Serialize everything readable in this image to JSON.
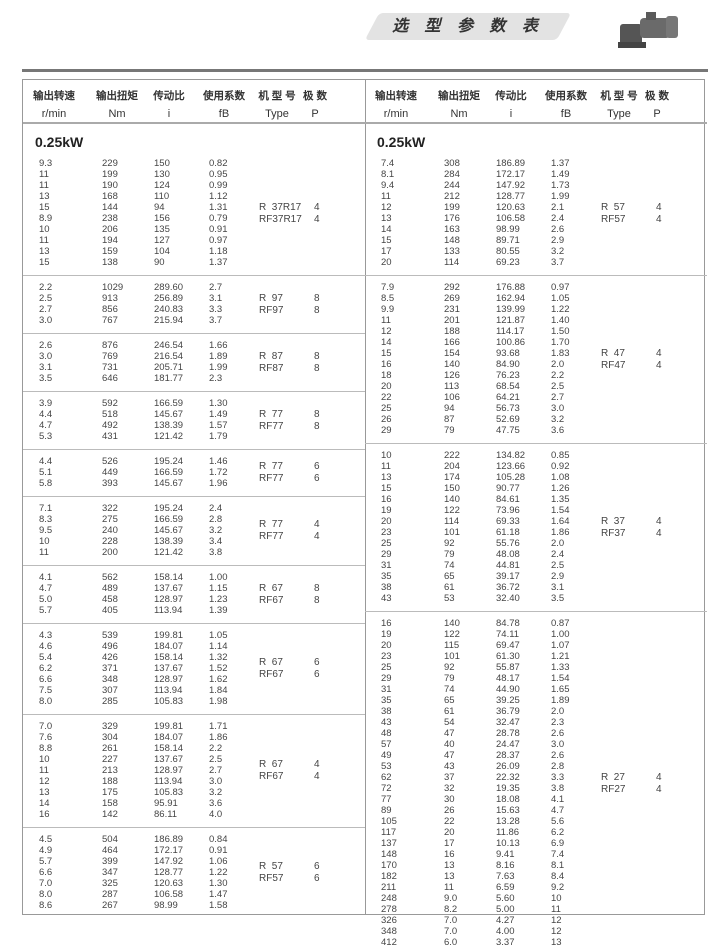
{
  "title": "选 型 参 数 表",
  "headers": [
    {
      "cn": "输出转速",
      "en": "r/min"
    },
    {
      "cn": "输出扭矩",
      "en": "Nm"
    },
    {
      "cn": "传动比",
      "en": "i"
    },
    {
      "cn": "使用系数",
      "en": "fB"
    },
    {
      "cn": "机 型 号",
      "en": "Type"
    },
    {
      "cn": "极  数",
      "en": "P"
    }
  ],
  "left": {
    "power": "0.25kW",
    "groups": [
      {
        "type": [
          "R  37R17",
          "RF37R17"
        ],
        "poles": [
          "4",
          "4"
        ],
        "rows": [
          [
            "9.3",
            "229",
            "150",
            "0.82"
          ],
          [
            "11",
            "199",
            "130",
            "0.95"
          ],
          [
            "11",
            "190",
            "124",
            "0.99"
          ],
          [
            "13",
            "168",
            "110",
            "1.12"
          ],
          [
            "15",
            "144",
            "94",
            "1.31"
          ],
          [
            "8.9",
            "238",
            "156",
            "0.79"
          ],
          [
            "10",
            "206",
            "135",
            "0.91"
          ],
          [
            "11",
            "194",
            "127",
            "0.97"
          ],
          [
            "13",
            "159",
            "104",
            "1.18"
          ],
          [
            "15",
            "138",
            "90",
            "1.37"
          ]
        ]
      },
      {
        "type": [
          "R  97",
          "RF97"
        ],
        "poles": [
          "8",
          "8"
        ],
        "rows": [
          [
            "2.2",
            "1029",
            "289.60",
            "2.7"
          ],
          [
            "2.5",
            "913",
            "256.89",
            "3.1"
          ],
          [
            "2.7",
            "856",
            "240.83",
            "3.3"
          ],
          [
            "3.0",
            "767",
            "215.94",
            "3.7"
          ]
        ]
      },
      {
        "type": [
          "R  87",
          "RF87"
        ],
        "poles": [
          "8",
          "8"
        ],
        "rows": [
          [
            "2.6",
            "876",
            "246.54",
            "1.66"
          ],
          [
            "3.0",
            "769",
            "216.54",
            "1.89"
          ],
          [
            "3.1",
            "731",
            "205.71",
            "1.99"
          ],
          [
            "3.5",
            "646",
            "181.77",
            "2.3"
          ]
        ]
      },
      {
        "type": [
          "R  77",
          "RF77"
        ],
        "poles": [
          "8",
          "8"
        ],
        "rows": [
          [
            "3.9",
            "592",
            "166.59",
            "1.30"
          ],
          [
            "4.4",
            "518",
            "145.67",
            "1.49"
          ],
          [
            "4.7",
            "492",
            "138.39",
            "1.57"
          ],
          [
            "5.3",
            "431",
            "121.42",
            "1.79"
          ]
        ]
      },
      {
        "type": [
          "R  77",
          "RF77"
        ],
        "poles": [
          "6",
          "6"
        ],
        "rows": [
          [
            "4.4",
            "526",
            "195.24",
            "1.46"
          ],
          [
            "5.1",
            "449",
            "166.59",
            "1.72"
          ],
          [
            "5.8",
            "393",
            "145.67",
            "1.96"
          ]
        ]
      },
      {
        "type": [
          "R  77",
          "RF77"
        ],
        "poles": [
          "4",
          "4"
        ],
        "rows": [
          [
            "7.1",
            "322",
            "195.24",
            "2.4"
          ],
          [
            "8.3",
            "275",
            "166.59",
            "2.8"
          ],
          [
            "9.5",
            "240",
            "145.67",
            "3.2"
          ],
          [
            "10",
            "228",
            "138.39",
            "3.4"
          ],
          [
            "11",
            "200",
            "121.42",
            "3.8"
          ]
        ]
      },
      {
        "type": [
          "R  67",
          "RF67"
        ],
        "poles": [
          "8",
          "8"
        ],
        "rows": [
          [
            "4.1",
            "562",
            "158.14",
            "1.00"
          ],
          [
            "4.7",
            "489",
            "137.67",
            "1.15"
          ],
          [
            "5.0",
            "458",
            "128.97",
            "1.23"
          ],
          [
            "5.7",
            "405",
            "113.94",
            "1.39"
          ]
        ]
      },
      {
        "type": [
          "R  67",
          "RF67"
        ],
        "poles": [
          "6",
          "6"
        ],
        "rows": [
          [
            "4.3",
            "539",
            "199.81",
            "1.05"
          ],
          [
            "4.6",
            "496",
            "184.07",
            "1.14"
          ],
          [
            "5.4",
            "426",
            "158.14",
            "1.32"
          ],
          [
            "6.2",
            "371",
            "137.67",
            "1.52"
          ],
          [
            "6.6",
            "348",
            "128.97",
            "1.62"
          ],
          [
            "7.5",
            "307",
            "113.94",
            "1.84"
          ],
          [
            "8.0",
            "285",
            "105.83",
            "1.98"
          ]
        ]
      },
      {
        "type": [
          "R  67",
          "RF67"
        ],
        "poles": [
          "4",
          "4"
        ],
        "rows": [
          [
            "7.0",
            "329",
            "199.81",
            "1.71"
          ],
          [
            "7.6",
            "304",
            "184.07",
            "1.86"
          ],
          [
            "8.8",
            "261",
            "158.14",
            "2.2"
          ],
          [
            "10",
            "227",
            "137.67",
            "2.5"
          ],
          [
            "11",
            "213",
            "128.97",
            "2.7"
          ],
          [
            "12",
            "188",
            "113.94",
            "3.0"
          ],
          [
            "13",
            "175",
            "105.83",
            "3.2"
          ],
          [
            "14",
            "158",
            "95.91",
            "3.6"
          ],
          [
            "16",
            "142",
            "86.11",
            "4.0"
          ]
        ]
      },
      {
        "type": [
          "R  57",
          "RF57"
        ],
        "poles": [
          "6",
          "6"
        ],
        "rows": [
          [
            "4.5",
            "504",
            "186.89",
            "0.84"
          ],
          [
            "4.9",
            "464",
            "172.17",
            "0.91"
          ],
          [
            "5.7",
            "399",
            "147.92",
            "1.06"
          ],
          [
            "6.6",
            "347",
            "128.77",
            "1.22"
          ],
          [
            "7.0",
            "325",
            "120.63",
            "1.30"
          ],
          [
            "8.0",
            "287",
            "106.58",
            "1.47"
          ],
          [
            "8.6",
            "267",
            "98.99",
            "1.58"
          ]
        ]
      }
    ]
  },
  "right": {
    "power": "0.25kW",
    "groups": [
      {
        "type": [
          "R  57",
          "RF57"
        ],
        "poles": [
          "4",
          "4"
        ],
        "rows": [
          [
            "7.4",
            "308",
            "186.89",
            "1.37"
          ],
          [
            "8.1",
            "284",
            "172.17",
            "1.49"
          ],
          [
            "9.4",
            "244",
            "147.92",
            "1.73"
          ],
          [
            "11",
            "212",
            "128.77",
            "1.99"
          ],
          [
            "12",
            "199",
            "120.63",
            "2.1"
          ],
          [
            "13",
            "176",
            "106.58",
            "2.4"
          ],
          [
            "14",
            "163",
            "98.99",
            "2.6"
          ],
          [
            "15",
            "148",
            "89.71",
            "2.9"
          ],
          [
            "17",
            "133",
            "80.55",
            "3.2"
          ],
          [
            "20",
            "114",
            "69.23",
            "3.7"
          ]
        ]
      },
      {
        "type": [
          "R  47",
          "RF47"
        ],
        "poles": [
          "4",
          "4"
        ],
        "rows": [
          [
            "7.9",
            "292",
            "176.88",
            "0.97"
          ],
          [
            "8.5",
            "269",
            "162.94",
            "1.05"
          ],
          [
            "9.9",
            "231",
            "139.99",
            "1.22"
          ],
          [
            "11",
            "201",
            "121.87",
            "1.40"
          ],
          [
            "12",
            "188",
            "114.17",
            "1.50"
          ],
          [
            "14",
            "166",
            "100.86",
            "1.70"
          ],
          [
            "15",
            "154",
            "93.68",
            "1.83"
          ],
          [
            "16",
            "140",
            "84.90",
            "2.0"
          ],
          [
            "18",
            "126",
            "76.23",
            "2.2"
          ],
          [
            "20",
            "113",
            "68.54",
            "2.5"
          ],
          [
            "22",
            "106",
            "64.21",
            "2.7"
          ],
          [
            "25",
            "94",
            "56.73",
            "3.0"
          ],
          [
            "26",
            "87",
            "52.69",
            "3.2"
          ],
          [
            "29",
            "79",
            "47.75",
            "3.6"
          ]
        ]
      },
      {
        "type": [
          "R  37",
          "RF37"
        ],
        "poles": [
          "4",
          "4"
        ],
        "rows": [
          [
            "10",
            "222",
            "134.82",
            "0.85"
          ],
          [
            "11",
            "204",
            "123.66",
            "0.92"
          ],
          [
            "13",
            "174",
            "105.28",
            "1.08"
          ],
          [
            "15",
            "150",
            "90.77",
            "1.26"
          ],
          [
            "16",
            "140",
            "84.61",
            "1.35"
          ],
          [
            "19",
            "122",
            "73.96",
            "1.54"
          ],
          [
            "20",
            "114",
            "69.33",
            "1.64"
          ],
          [
            "23",
            "101",
            "61.18",
            "1.86"
          ],
          [
            "25",
            "92",
            "55.76",
            "2.0"
          ],
          [
            "29",
            "79",
            "48.08",
            "2.4"
          ],
          [
            "31",
            "74",
            "44.81",
            "2.5"
          ],
          [
            "35",
            "65",
            "39.17",
            "2.9"
          ],
          [
            "38",
            "61",
            "36.72",
            "3.1"
          ],
          [
            "43",
            "53",
            "32.40",
            "3.5"
          ]
        ]
      },
      {
        "type": [
          "R  27",
          "RF27"
        ],
        "poles": [
          "4",
          "4"
        ],
        "rows": [
          [
            "16",
            "140",
            "84.78",
            "0.87"
          ],
          [
            "19",
            "122",
            "74.11",
            "1.00"
          ],
          [
            "20",
            "115",
            "69.47",
            "1.07"
          ],
          [
            "23",
            "101",
            "61.30",
            "1.21"
          ],
          [
            "25",
            "92",
            "55.87",
            "1.33"
          ],
          [
            "29",
            "79",
            "48.17",
            "1.54"
          ],
          [
            "31",
            "74",
            "44.90",
            "1.65"
          ],
          [
            "35",
            "65",
            "39.25",
            "1.89"
          ],
          [
            "38",
            "61",
            "36.79",
            "2.0"
          ],
          [
            "43",
            "54",
            "32.47",
            "2.3"
          ],
          [
            "48",
            "47",
            "28.78",
            "2.6"
          ],
          [
            "57",
            "40",
            "24.47",
            "3.0"
          ],
          [
            "49",
            "47",
            "28.37",
            "2.6"
          ],
          [
            "53",
            "43",
            "26.09",
            "2.8"
          ],
          [
            "62",
            "37",
            "22.32",
            "3.3"
          ],
          [
            "72",
            "32",
            "19.35",
            "3.8"
          ],
          [
            "77",
            "30",
            "18.08",
            "4.1"
          ],
          [
            "89",
            "26",
            "15.63",
            "4.7"
          ],
          [
            "105",
            "22",
            "13.28",
            "5.6"
          ],
          [
            "117",
            "20",
            "11.86",
            "6.2"
          ],
          [
            "137",
            "17",
            "10.13",
            "6.9"
          ],
          [
            "148",
            "16",
            "9.41",
            "7.4"
          ],
          [
            "170",
            "13",
            "8.16",
            "8.1"
          ],
          [
            "182",
            "13",
            "7.63",
            "8.4"
          ],
          [
            "211",
            "11",
            "6.59",
            "9.2"
          ],
          [
            "248",
            "9.0",
            "5.60",
            "10"
          ],
          [
            "278",
            "8.2",
            "5.00",
            "11"
          ],
          [
            "326",
            "7.0",
            "4.27",
            "12"
          ],
          [
            "348",
            "7.0",
            "4.00",
            "12"
          ],
          [
            "412",
            "6.0",
            "3.37",
            "13"
          ]
        ]
      }
    ]
  }
}
